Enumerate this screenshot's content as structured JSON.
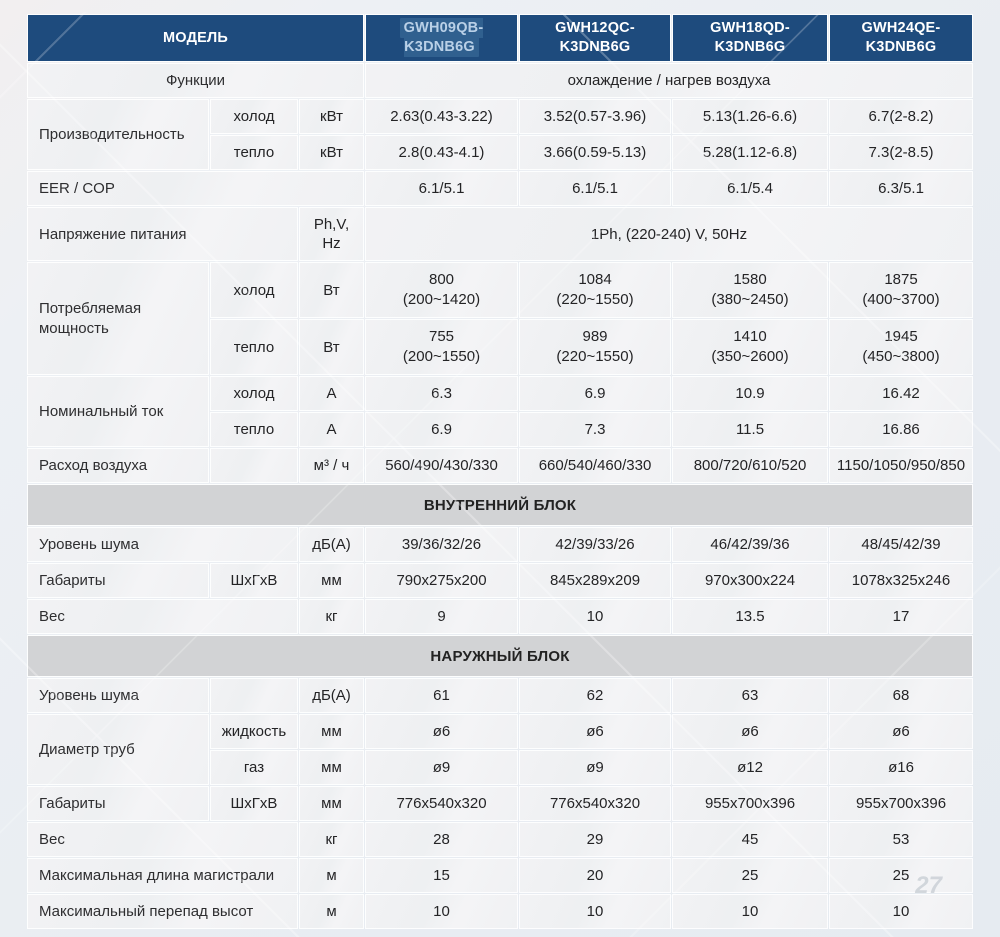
{
  "colors": {
    "header_bg": "#1e4b7d",
    "header_highlight_bg": "#30608f",
    "header_highlight_fg": "#b9d0e7",
    "section_bg": "#d2d3d5",
    "cell_bg": "#f1f1f3"
  },
  "watermark": "27",
  "header": {
    "model_label": "МОДЕЛЬ",
    "models": [
      {
        "name": "GWH09QB-K3DNB6G",
        "highlighted": true
      },
      {
        "name": "GWH12QC-K3DNB6G",
        "highlighted": false
      },
      {
        "name": "GWH18QD-K3DNB6G",
        "highlighted": false
      },
      {
        "name": "GWH24QE-K3DNB6G",
        "highlighted": false
      }
    ]
  },
  "table": {
    "rows": [
      {
        "cells": [
          {
            "t": "Функции",
            "cls": "label center",
            "cs": 3
          },
          {
            "t": "охлаждение / нагрев воздуха",
            "cls": "value",
            "cs": 4
          }
        ]
      },
      {
        "cells": [
          {
            "t": "Производительность",
            "cls": "label",
            "rs": 2
          },
          {
            "t": "холод",
            "cls": "value"
          },
          {
            "t": "кВт",
            "cls": "value"
          },
          {
            "t": "2.63(0.43-3.22)",
            "cls": "value"
          },
          {
            "t": "3.52(0.57-3.96)",
            "cls": "value"
          },
          {
            "t": "5.13(1.26-6.6)",
            "cls": "value"
          },
          {
            "t": "6.7(2-8.2)",
            "cls": "value"
          }
        ]
      },
      {
        "cells": [
          {
            "t": "тепло",
            "cls": "value"
          },
          {
            "t": "кВт",
            "cls": "value"
          },
          {
            "t": "2.8(0.43-4.1)",
            "cls": "value"
          },
          {
            "t": "3.66(0.59-5.13)",
            "cls": "value"
          },
          {
            "t": "5.28(1.12-6.8)",
            "cls": "value"
          },
          {
            "t": "7.3(2-8.5)",
            "cls": "value"
          }
        ]
      },
      {
        "cells": [
          {
            "t": "EER / COP",
            "cls": "label",
            "cs": 3
          },
          {
            "t": "6.1/5.1",
            "cls": "value"
          },
          {
            "t": "6.1/5.1",
            "cls": "value"
          },
          {
            "t": "6.1/5.4",
            "cls": "value"
          },
          {
            "t": "6.3/5.1",
            "cls": "value"
          }
        ]
      },
      {
        "cells": [
          {
            "t": "Напряжение питания",
            "cls": "label",
            "cs": 2
          },
          {
            "t": "Ph,V,\nHz",
            "cls": "value"
          },
          {
            "t": "1Ph, (220-240) V, 50Hz",
            "cls": "value",
            "cs": 4
          }
        ]
      },
      {
        "cells": [
          {
            "t": "Потребляемая\nмощность",
            "cls": "label twoline",
            "rs": 2
          },
          {
            "t": "холод",
            "cls": "value"
          },
          {
            "t": "Вт",
            "cls": "value"
          },
          {
            "t": "800\n(200~1420)",
            "cls": "value twoline"
          },
          {
            "t": "1084\n(220~1550)",
            "cls": "value twoline"
          },
          {
            "t": "1580\n(380~2450)",
            "cls": "value twoline"
          },
          {
            "t": "1875\n(400~3700)",
            "cls": "value twoline"
          }
        ]
      },
      {
        "cells": [
          {
            "t": "тепло",
            "cls": "value"
          },
          {
            "t": "Вт",
            "cls": "value"
          },
          {
            "t": "755\n(200~1550)",
            "cls": "value twoline"
          },
          {
            "t": "989\n(220~1550)",
            "cls": "value twoline"
          },
          {
            "t": "1410\n(350~2600)",
            "cls": "value twoline"
          },
          {
            "t": "1945\n(450~3800)",
            "cls": "value twoline"
          }
        ]
      },
      {
        "cells": [
          {
            "t": "Номинальный ток",
            "cls": "label",
            "rs": 2
          },
          {
            "t": "холод",
            "cls": "value"
          },
          {
            "t": "А",
            "cls": "value"
          },
          {
            "t": "6.3",
            "cls": "value"
          },
          {
            "t": "6.9",
            "cls": "value"
          },
          {
            "t": "10.9",
            "cls": "value"
          },
          {
            "t": "16.42",
            "cls": "value"
          }
        ]
      },
      {
        "cells": [
          {
            "t": "тепло",
            "cls": "value"
          },
          {
            "t": "А",
            "cls": "value"
          },
          {
            "t": "6.9",
            "cls": "value"
          },
          {
            "t": "7.3",
            "cls": "value"
          },
          {
            "t": "11.5",
            "cls": "value"
          },
          {
            "t": "16.86",
            "cls": "value"
          }
        ]
      },
      {
        "cells": [
          {
            "t": "Расход воздуха",
            "cls": "label"
          },
          {
            "t": "",
            "cls": "value"
          },
          {
            "t": "м³ / ч",
            "cls": "value"
          },
          {
            "t": "560/490/430/330",
            "cls": "value"
          },
          {
            "t": "660/540/460/330",
            "cls": "value"
          },
          {
            "t": "800/720/610/520",
            "cls": "value"
          },
          {
            "t": "1150/1050/950/850",
            "cls": "value"
          }
        ]
      },
      {
        "section": true,
        "cells": [
          {
            "t": "ВНУТРЕННИЙ БЛОК",
            "cls": "section",
            "cs": 7
          }
        ]
      },
      {
        "cells": [
          {
            "t": "Уровень шума",
            "cls": "label",
            "cs": 2
          },
          {
            "t": "дБ(А)",
            "cls": "value"
          },
          {
            "t": "39/36/32/26",
            "cls": "value"
          },
          {
            "t": "42/39/33/26",
            "cls": "value"
          },
          {
            "t": "46/42/39/36",
            "cls": "value"
          },
          {
            "t": "48/45/42/39",
            "cls": "value"
          }
        ]
      },
      {
        "cells": [
          {
            "t": "Габариты",
            "cls": "label"
          },
          {
            "t": "ШхГхВ",
            "cls": "value"
          },
          {
            "t": "мм",
            "cls": "value"
          },
          {
            "t": "790x275x200",
            "cls": "value"
          },
          {
            "t": "845x289x209",
            "cls": "value"
          },
          {
            "t": "970x300x224",
            "cls": "value"
          },
          {
            "t": "1078x325x246",
            "cls": "value"
          }
        ]
      },
      {
        "cells": [
          {
            "t": "Вес",
            "cls": "label",
            "cs": 2
          },
          {
            "t": "кг",
            "cls": "value"
          },
          {
            "t": "9",
            "cls": "value"
          },
          {
            "t": "10",
            "cls": "value"
          },
          {
            "t": "13.5",
            "cls": "value"
          },
          {
            "t": "17",
            "cls": "value"
          }
        ]
      },
      {
        "section": true,
        "cells": [
          {
            "t": "НАРУЖНЫЙ БЛОК",
            "cls": "section",
            "cs": 7
          }
        ]
      },
      {
        "cells": [
          {
            "t": "Уровень шума",
            "cls": "label"
          },
          {
            "t": "",
            "cls": "value"
          },
          {
            "t": "дБ(А)",
            "cls": "value"
          },
          {
            "t": "61",
            "cls": "value"
          },
          {
            "t": "62",
            "cls": "value"
          },
          {
            "t": "63",
            "cls": "value"
          },
          {
            "t": "68",
            "cls": "value"
          }
        ]
      },
      {
        "cells": [
          {
            "t": "Диаметр труб",
            "cls": "label",
            "rs": 2
          },
          {
            "t": "жидкость",
            "cls": "value"
          },
          {
            "t": "мм",
            "cls": "value"
          },
          {
            "t": "ø6",
            "cls": "value"
          },
          {
            "t": "ø6",
            "cls": "value"
          },
          {
            "t": "ø6",
            "cls": "value"
          },
          {
            "t": "ø6",
            "cls": "value"
          }
        ]
      },
      {
        "cells": [
          {
            "t": "газ",
            "cls": "value"
          },
          {
            "t": "мм",
            "cls": "value"
          },
          {
            "t": "ø9",
            "cls": "value"
          },
          {
            "t": "ø9",
            "cls": "value"
          },
          {
            "t": "ø12",
            "cls": "value"
          },
          {
            "t": "ø16",
            "cls": "value"
          }
        ]
      },
      {
        "cells": [
          {
            "t": "Габариты",
            "cls": "label"
          },
          {
            "t": "ШхГхВ",
            "cls": "value"
          },
          {
            "t": "мм",
            "cls": "value"
          },
          {
            "t": "776x540x320",
            "cls": "value"
          },
          {
            "t": "776x540x320",
            "cls": "value"
          },
          {
            "t": "955x700x396",
            "cls": "value"
          },
          {
            "t": "955x700x396",
            "cls": "value"
          }
        ]
      },
      {
        "cells": [
          {
            "t": "Вес",
            "cls": "label",
            "cs": 2
          },
          {
            "t": "кг",
            "cls": "value"
          },
          {
            "t": "28",
            "cls": "value"
          },
          {
            "t": "29",
            "cls": "value"
          },
          {
            "t": "45",
            "cls": "value"
          },
          {
            "t": "53",
            "cls": "value"
          }
        ]
      },
      {
        "cells": [
          {
            "t": "Максимальная длина магистрали",
            "cls": "label",
            "cs": 2
          },
          {
            "t": "м",
            "cls": "value"
          },
          {
            "t": "15",
            "cls": "value"
          },
          {
            "t": "20",
            "cls": "value"
          },
          {
            "t": "25",
            "cls": "value"
          },
          {
            "t": "25",
            "cls": "value"
          }
        ]
      },
      {
        "cells": [
          {
            "t": "Максимальный перепад высот",
            "cls": "label",
            "cs": 2
          },
          {
            "t": "м",
            "cls": "value"
          },
          {
            "t": "10",
            "cls": "value"
          },
          {
            "t": "10",
            "cls": "value"
          },
          {
            "t": "10",
            "cls": "value"
          },
          {
            "t": "10",
            "cls": "value"
          }
        ]
      }
    ]
  }
}
